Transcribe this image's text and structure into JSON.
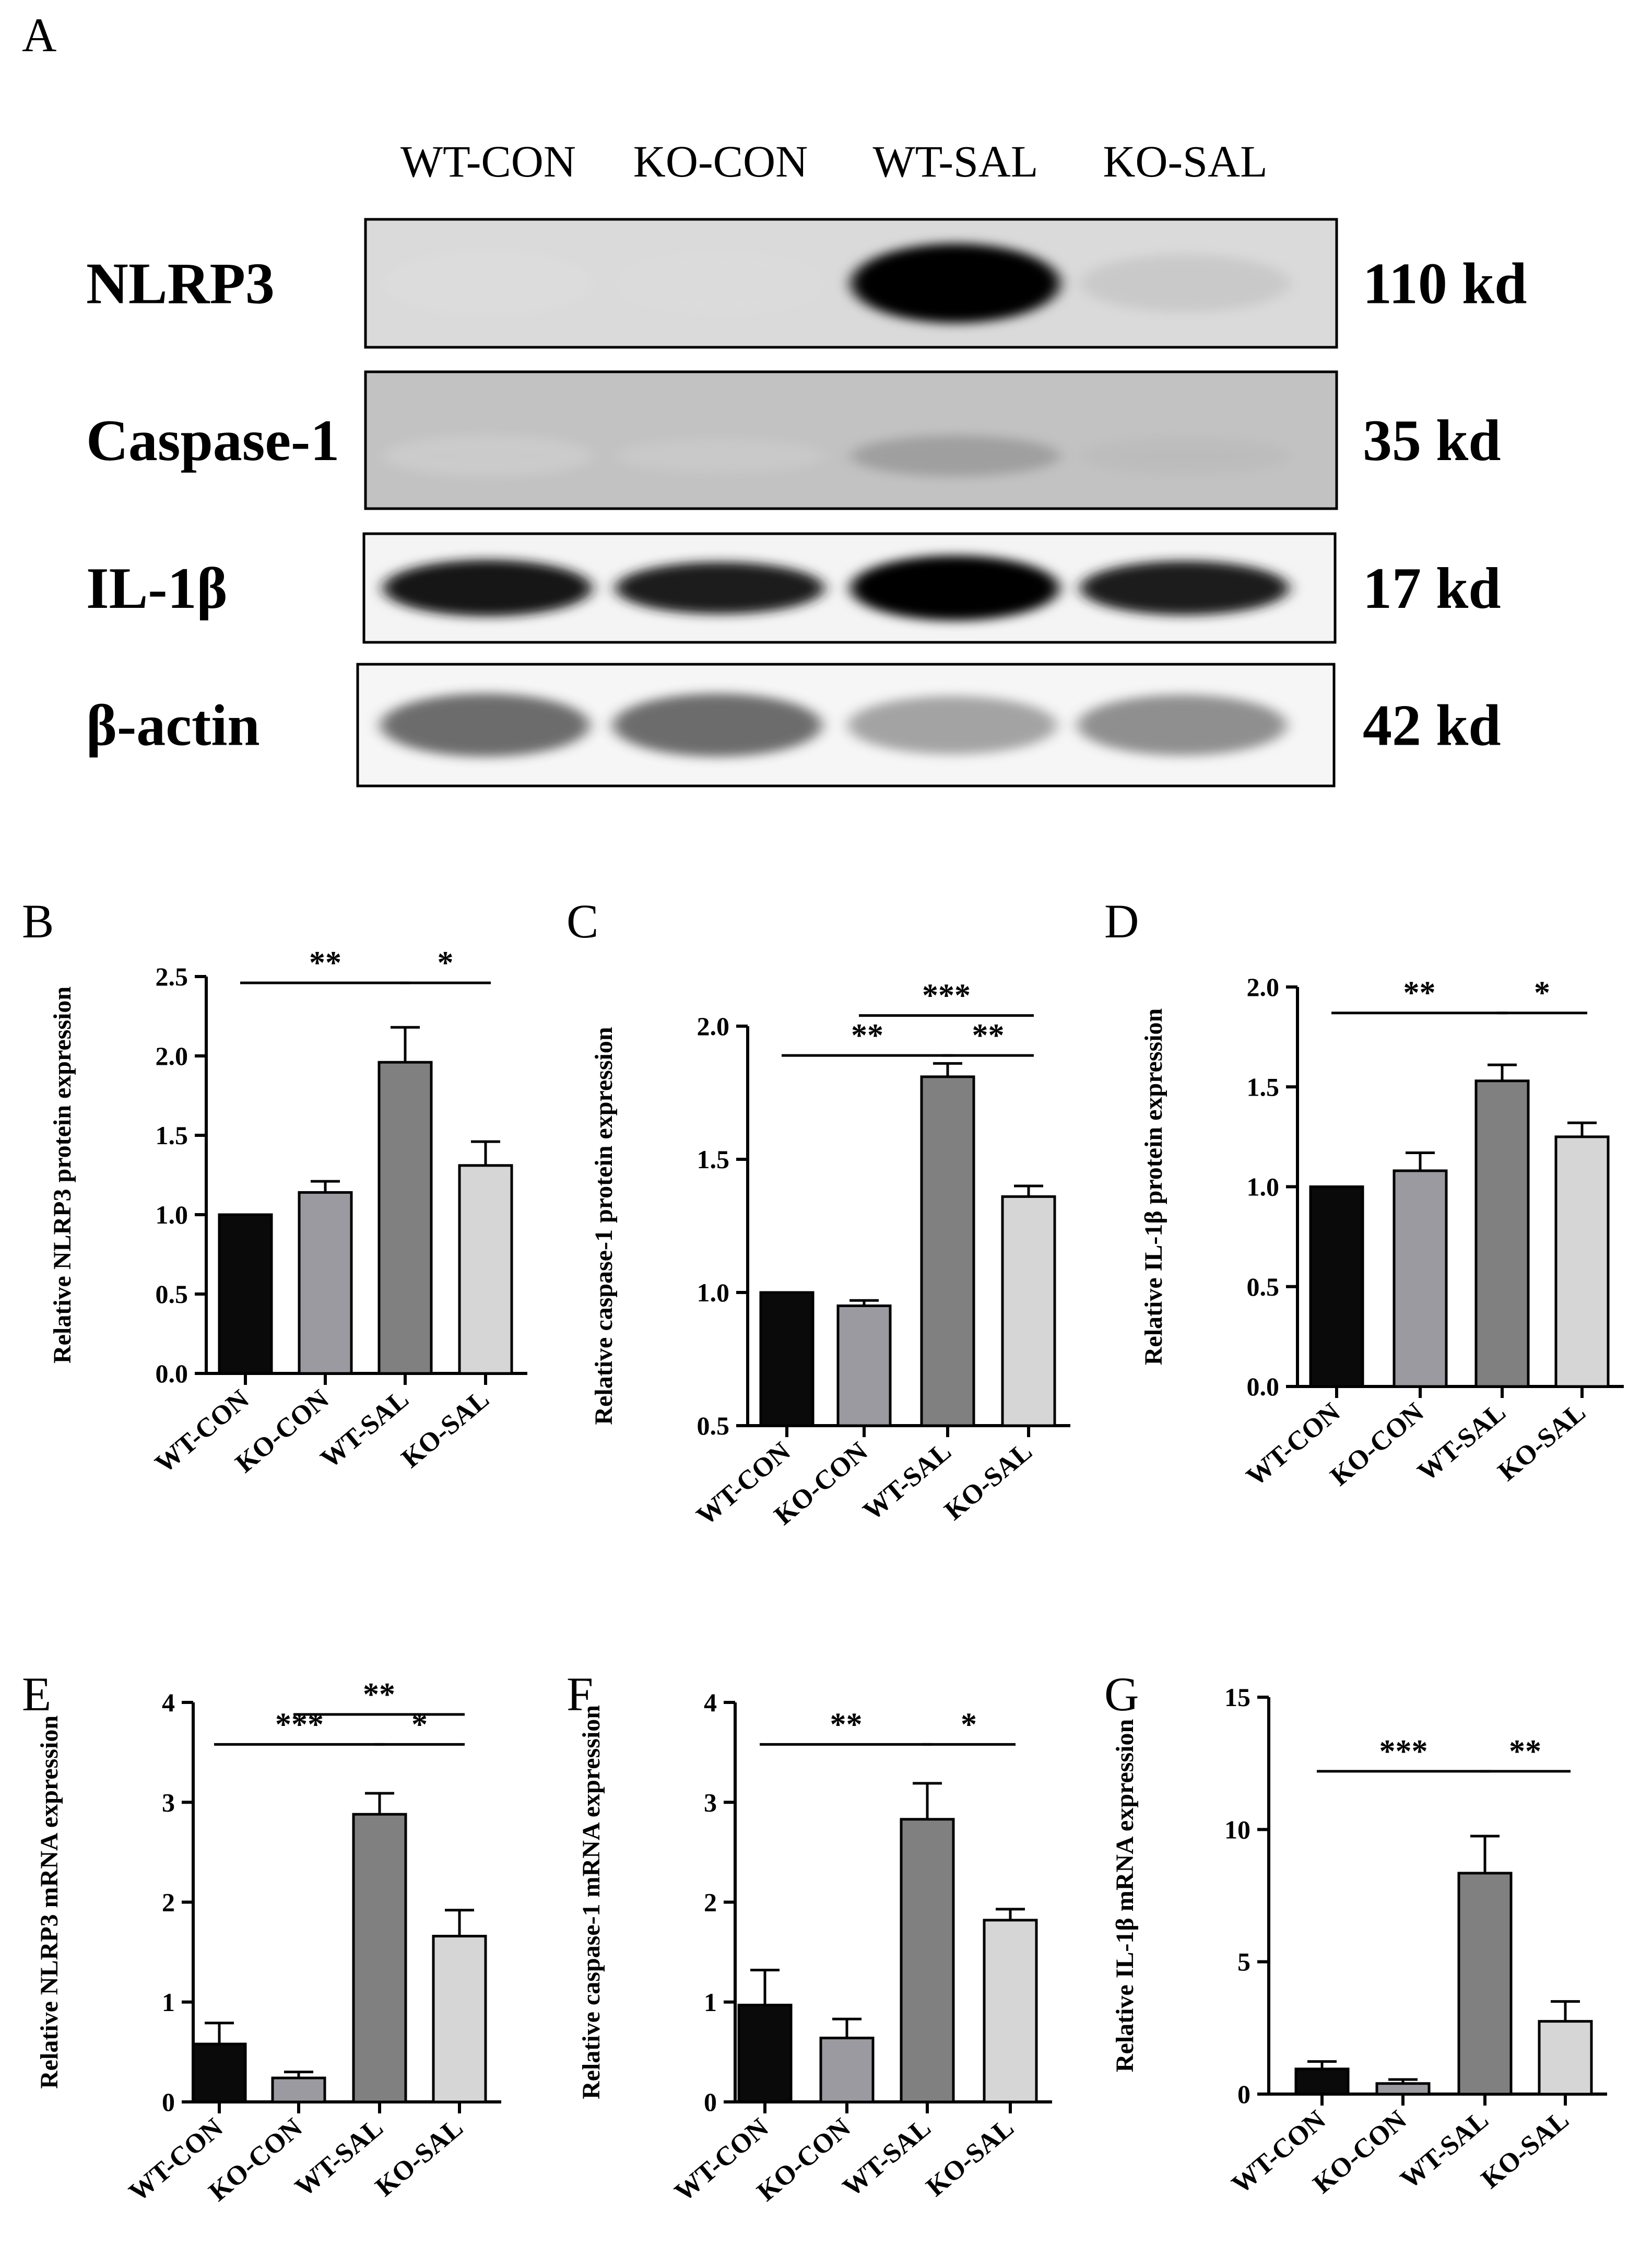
{
  "colors": {
    "WT-CON": "#0a0a0a",
    "KO-CON": "#9a9aa0",
    "WT-SAL": "#808080",
    "KO-SAL": "#d6d6d6"
  },
  "panel_a": {
    "letter": "A",
    "lanes": [
      "WT-CON",
      "KO-CON",
      "WT-SAL",
      "KO-SAL"
    ],
    "blots": [
      {
        "protein": "NLRP3",
        "size": "110 kd",
        "background": "#dadada",
        "bands": [
          {
            "intensity": 0.04,
            "thickness": 0.5
          },
          {
            "intensity": 0.05,
            "thickness": 0.5
          },
          {
            "intensity": 1.0,
            "thickness": 0.62
          },
          {
            "intensity": 0.22,
            "thickness": 0.45
          }
        ]
      },
      {
        "protein": "Caspase-1",
        "size": "35 kd",
        "background": "#c2c2c2",
        "bands": [
          {
            "intensity": 0.03,
            "thickness": 0.3
          },
          {
            "intensity": 0.08,
            "thickness": 0.25
          },
          {
            "intensity": 0.4,
            "thickness": 0.3
          },
          {
            "intensity": 0.22,
            "thickness": 0.28
          }
        ]
      },
      {
        "protein": "IL-1β",
        "size": "17 kd",
        "background": "#f4f4f4",
        "bands": [
          {
            "intensity": 0.92,
            "thickness": 0.52
          },
          {
            "intensity": 0.88,
            "thickness": 0.48
          },
          {
            "intensity": 0.98,
            "thickness": 0.6
          },
          {
            "intensity": 0.88,
            "thickness": 0.5
          }
        ]
      },
      {
        "protein": "β-actin",
        "size": "42 kd",
        "background": "#f6f6f6",
        "bands": [
          {
            "intensity": 0.62,
            "thickness": 0.52
          },
          {
            "intensity": 0.62,
            "thickness": 0.52
          },
          {
            "intensity": 0.45,
            "thickness": 0.48
          },
          {
            "intensity": 0.52,
            "thickness": 0.5
          }
        ]
      }
    ]
  },
  "chart_data": [
    {
      "panel": "B",
      "type": "bar",
      "ylabel": "Relative NLRP3 protein expression",
      "categories": [
        "WT-CON",
        "KO-CON",
        "WT-SAL",
        "KO-SAL"
      ],
      "values": [
        1.0,
        1.14,
        1.96,
        1.31
      ],
      "errors": [
        0,
        0.07,
        0.22,
        0.15
      ],
      "ylim": [
        0,
        2.5
      ],
      "yticks": [
        0.0,
        0.5,
        1.0,
        1.5,
        2.0,
        2.5
      ],
      "ytick_labels": [
        "0.0",
        "0.5",
        "1.0",
        "1.5",
        "2.0",
        "2.5"
      ],
      "significance": [
        {
          "from": 0,
          "to": 2,
          "label": "**",
          "y": 2.46
        },
        {
          "from": 2,
          "to": 3,
          "label": "*",
          "y": 2.46
        }
      ]
    },
    {
      "panel": "C",
      "type": "bar",
      "ylabel": "Relative caspase-1 protein expression",
      "categories": [
        "WT-CON",
        "KO-CON",
        "WT-SAL",
        "KO-SAL"
      ],
      "values": [
        1.0,
        0.95,
        1.81,
        1.36
      ],
      "errors": [
        0,
        0.02,
        0.05,
        0.04
      ],
      "ylim": [
        0.5,
        2.0
      ],
      "yticks": [
        0.5,
        1.0,
        1.5,
        2.0
      ],
      "ytick_labels": [
        "0.5",
        "1.0",
        "1.5",
        "2.0"
      ],
      "significance": [
        {
          "from": 1,
          "to": 3,
          "label": "***",
          "y": 2.04
        },
        {
          "from": 0,
          "to": 2,
          "label": "**",
          "y": 1.89
        },
        {
          "from": 2,
          "to": 3,
          "label": "**",
          "y": 1.89
        }
      ]
    },
    {
      "panel": "D",
      "type": "bar",
      "ylabel": "Relative IL-1β protein expression",
      "categories": [
        "WT-CON",
        "KO-CON",
        "WT-SAL",
        "KO-SAL"
      ],
      "values": [
        1.0,
        1.08,
        1.53,
        1.25
      ],
      "errors": [
        0,
        0.09,
        0.08,
        0.07
      ],
      "ylim": [
        0,
        2.0
      ],
      "yticks": [
        0.0,
        0.5,
        1.0,
        1.5,
        2.0
      ],
      "ytick_labels": [
        "0.0",
        "0.5",
        "1.0",
        "1.5",
        "2.0"
      ],
      "significance": [
        {
          "from": 0,
          "to": 2,
          "label": "**",
          "y": 1.87
        },
        {
          "from": 2,
          "to": 3,
          "label": "*",
          "y": 1.87
        }
      ]
    },
    {
      "panel": "E",
      "type": "bar",
      "ylabel": "Relative NLRP3 mRNA expression",
      "categories": [
        "WT-CON",
        "KO-CON",
        "WT-SAL",
        "KO-SAL"
      ],
      "values": [
        0.58,
        0.24,
        2.88,
        1.66
      ],
      "errors": [
        0.21,
        0.06,
        0.21,
        0.26
      ],
      "ylim": [
        0,
        4
      ],
      "yticks": [
        0,
        1,
        2,
        3,
        4
      ],
      "ytick_labels": [
        "0",
        "1",
        "2",
        "3",
        "4"
      ],
      "significance": [
        {
          "from": 1,
          "to": 3,
          "label": "**",
          "y": 3.88
        },
        {
          "from": 0,
          "to": 2,
          "label": "***",
          "y": 3.58
        },
        {
          "from": 2,
          "to": 3,
          "label": "*",
          "y": 3.58
        }
      ]
    },
    {
      "panel": "F",
      "type": "bar",
      "ylabel": "Relative caspase-1 mRNA expression",
      "categories": [
        "WT-CON",
        "KO-CON",
        "WT-SAL",
        "KO-SAL"
      ],
      "values": [
        0.97,
        0.64,
        2.83,
        1.82
      ],
      "errors": [
        0.35,
        0.19,
        0.36,
        0.11
      ],
      "ylim": [
        0,
        4
      ],
      "yticks": [
        0,
        1,
        2,
        3,
        4
      ],
      "ytick_labels": [
        "0",
        "1",
        "2",
        "3",
        "4"
      ],
      "significance": [
        {
          "from": 0,
          "to": 2,
          "label": "**",
          "y": 3.58
        },
        {
          "from": 2,
          "to": 3,
          "label": "*",
          "y": 3.58
        }
      ]
    },
    {
      "panel": "G",
      "type": "bar",
      "ylabel": "Relative IL-1β mRNA expression",
      "categories": [
        "WT-CON",
        "KO-CON",
        "WT-SAL",
        "KO-SAL"
      ],
      "values": [
        0.95,
        0.4,
        8.35,
        2.75
      ],
      "errors": [
        0.28,
        0.15,
        1.4,
        0.75
      ],
      "ylim": [
        0,
        15
      ],
      "yticks": [
        0,
        5,
        10,
        15
      ],
      "ytick_labels": [
        "0",
        "5",
        "10",
        "15"
      ],
      "significance": [
        {
          "from": 0,
          "to": 2,
          "label": "***",
          "y": 12.2
        },
        {
          "from": 2,
          "to": 3,
          "label": "**",
          "y": 12.2
        }
      ]
    }
  ]
}
